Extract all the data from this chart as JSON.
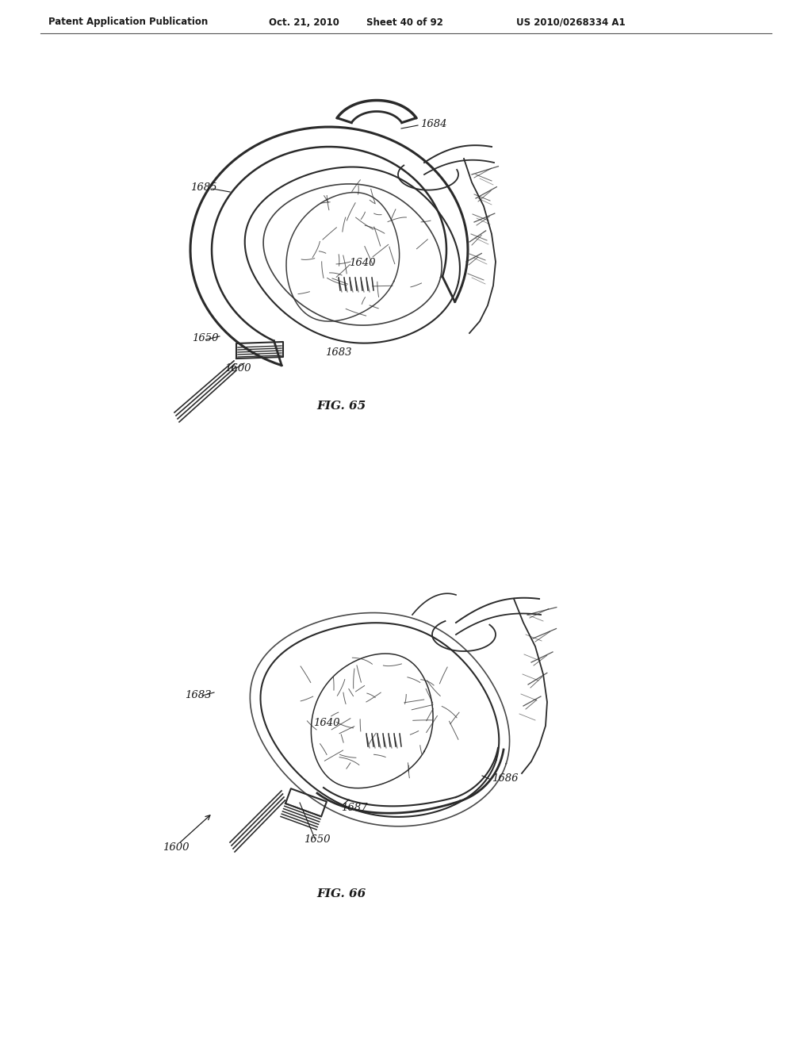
{
  "background_color": "#ffffff",
  "header_left": "Patent Application Publication",
  "header_mid1": "Oct. 21, 2010",
  "header_mid2": "Sheet 40 of 92",
  "header_right": "US 2010/0268334 A1",
  "fig65_caption": "FIG. 65",
  "fig66_caption": "FIG. 66",
  "line_color": "#2a2a2a",
  "text_color": "#1a1a1a"
}
